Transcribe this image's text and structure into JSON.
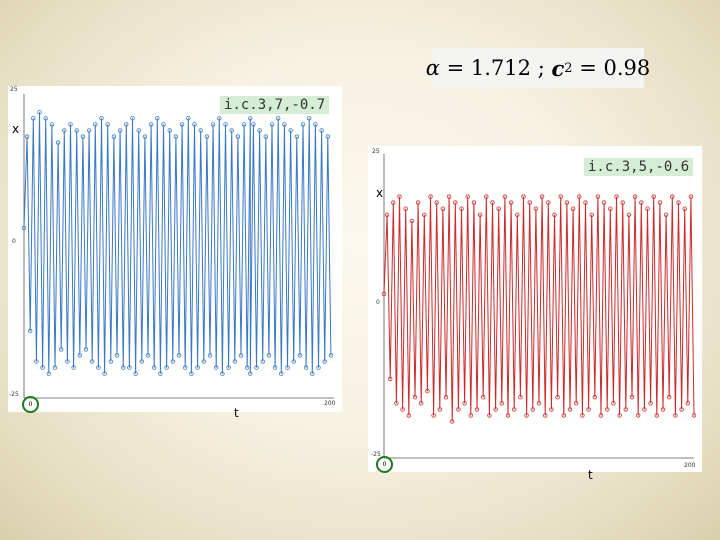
{
  "equation": {
    "alpha_symbol": "α",
    "text_mid": " = 1.712 ; ",
    "c_symbol": "c",
    "c_sub": "2",
    "text_end": " = 0.98"
  },
  "charts": [
    {
      "label": "i.c.3,7,-0.7",
      "ylabel": "x",
      "xlabel": "t",
      "y_top_tick": "25",
      "y_mid_tick": "0",
      "y_bottom_tick": "-25",
      "x_left_tick": "0",
      "x_right_tick": "200",
      "color": "#3a78c4"
    },
    {
      "label": "i.c.3,5,-0.6",
      "ylabel": "x",
      "xlabel": "t",
      "y_top_tick": "25",
      "y_mid_tick": "0",
      "y_bottom_tick": "-25",
      "x_left_tick": "0",
      "x_right_tick": "200",
      "color": "#cc2b2b"
    }
  ],
  "chart_data": [
    {
      "type": "line",
      "title": "i.c.3,7,-0.7",
      "xlabel": "t",
      "ylabel": "x",
      "xlim": [
        0,
        200
      ],
      "ylim": [
        -25,
        25
      ],
      "grid": false,
      "series": [
        {
          "color": "#3a78c4",
          "marker": "circle",
          "x": [
            0,
            2,
            4,
            6,
            8,
            10,
            12,
            14,
            16,
            18,
            20,
            22,
            24,
            26,
            28,
            30,
            32,
            34,
            36,
            38,
            40,
            42,
            44,
            46,
            48,
            50,
            52,
            54,
            56,
            58,
            60,
            62,
            64,
            66,
            68,
            70,
            72,
            74,
            76,
            78,
            80,
            82,
            84,
            86,
            88,
            90,
            92,
            94,
            96,
            98,
            100,
            102,
            104,
            106,
            108,
            110,
            112,
            114,
            116,
            118,
            120,
            122,
            124,
            126,
            128,
            130,
            132,
            134,
            136,
            138,
            140,
            142,
            144,
            146,
            146,
            148,
            150,
            152,
            154,
            156,
            158,
            160,
            162,
            164,
            166,
            168,
            170,
            172,
            174,
            176,
            178,
            180,
            182,
            184,
            186,
            188,
            190,
            192,
            194,
            196,
            198
          ],
          "y": [
            3,
            18,
            -14,
            21,
            -19,
            22,
            -20,
            21,
            -21,
            20,
            -20,
            17,
            -17,
            19,
            -19,
            20,
            -20,
            19,
            -18,
            18,
            -17,
            19,
            -19,
            20,
            -20,
            21,
            -21,
            20,
            -19,
            18,
            -18,
            19,
            -20,
            20,
            -20,
            21,
            -21,
            19,
            -19,
            18,
            -18,
            20,
            -20,
            21,
            -21,
            20,
            -20,
            19,
            -19,
            18,
            -18,
            20,
            -20,
            21,
            -21,
            20,
            -20,
            19,
            -19,
            18,
            -18,
            20,
            -20,
            21,
            -21,
            20,
            -20,
            19,
            -19,
            18,
            -18,
            20,
            -20,
            21,
            -21,
            20,
            -20,
            19,
            -19,
            18,
            -18,
            20,
            -20,
            21,
            -21,
            20,
            -20,
            19,
            -19,
            18,
            -18,
            20,
            -20,
            21,
            -21,
            20,
            -20,
            19,
            -19,
            18,
            -18
          ]
        }
      ]
    },
    {
      "type": "line",
      "title": "i.c.3,5,-0.6",
      "xlabel": "t",
      "ylabel": "x",
      "xlim": [
        0,
        200
      ],
      "ylim": [
        -25,
        25
      ],
      "grid": false,
      "series": [
        {
          "color": "#cc2b2b",
          "marker": "circle",
          "x": [
            0,
            2,
            4,
            6,
            8,
            10,
            12,
            14,
            16,
            18,
            20,
            22,
            24,
            26,
            28,
            30,
            32,
            34,
            36,
            38,
            40,
            42,
            44,
            46,
            48,
            50,
            52,
            54,
            56,
            58,
            60,
            62,
            64,
            66,
            68,
            70,
            72,
            74,
            76,
            78,
            80,
            82,
            84,
            86,
            88,
            90,
            92,
            94,
            96,
            98,
            100,
            102,
            104,
            106,
            108,
            110,
            112,
            114,
            116,
            118,
            120,
            122,
            124,
            126,
            128,
            130,
            132,
            134,
            136,
            138,
            140,
            142,
            144,
            146,
            148,
            150,
            152,
            154,
            156,
            158,
            160,
            162,
            164,
            166,
            168,
            170,
            172,
            174,
            176,
            178,
            180,
            182,
            184,
            186,
            188,
            190,
            192,
            194,
            196,
            198,
            200
          ],
          "y": [
            2,
            15,
            -12,
            17,
            -16,
            18,
            -17,
            16,
            -18,
            14,
            -15,
            17,
            -16,
            15,
            -14,
            18,
            -18,
            17,
            -17,
            16,
            -15,
            18,
            -19,
            17,
            -17,
            16,
            -16,
            18,
            -18,
            17,
            -17,
            15,
            -15,
            18,
            -18,
            17,
            -17,
            16,
            -16,
            18,
            -18,
            17,
            -17,
            15,
            -15,
            18,
            -18,
            17,
            -17,
            16,
            -16,
            18,
            -18,
            17,
            -17,
            15,
            -15,
            18,
            -18,
            17,
            -17,
            16,
            -16,
            18,
            -18,
            17,
            -17,
            15,
            -15,
            18,
            -18,
            17,
            -17,
            16,
            -16,
            18,
            -18,
            17,
            -17,
            15,
            -15,
            18,
            -18,
            17,
            -17,
            16,
            -16,
            18,
            -18,
            17,
            -17,
            15,
            -15,
            18,
            -18,
            17,
            -17,
            16,
            -16,
            18,
            -18
          ]
        }
      ]
    }
  ]
}
